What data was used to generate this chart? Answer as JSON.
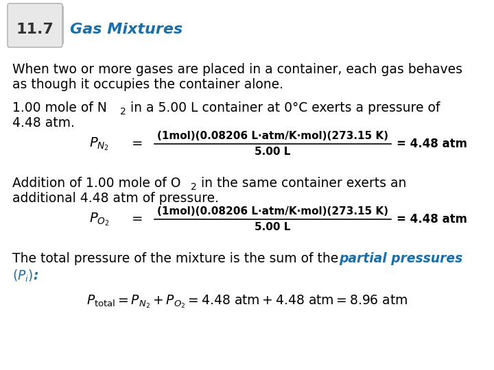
{
  "bg_color": "#ffffff",
  "header_box_color": "#e8e8e8",
  "header_box_edge": "#aaaaaa",
  "header_number": "11.7",
  "header_number_color": "#333333",
  "header_title": "Gas Mixtures",
  "header_title_color": "#1a6fa8",
  "body_text_color": "#000000",
  "blue_color": "#1a6fa8",
  "eq_numerator": "(1mol)(0.08206 L·atm/K·mol)(273.15 K)",
  "eq_denominator": "5.00 L",
  "eq_rhs": "= 4.48 atm"
}
